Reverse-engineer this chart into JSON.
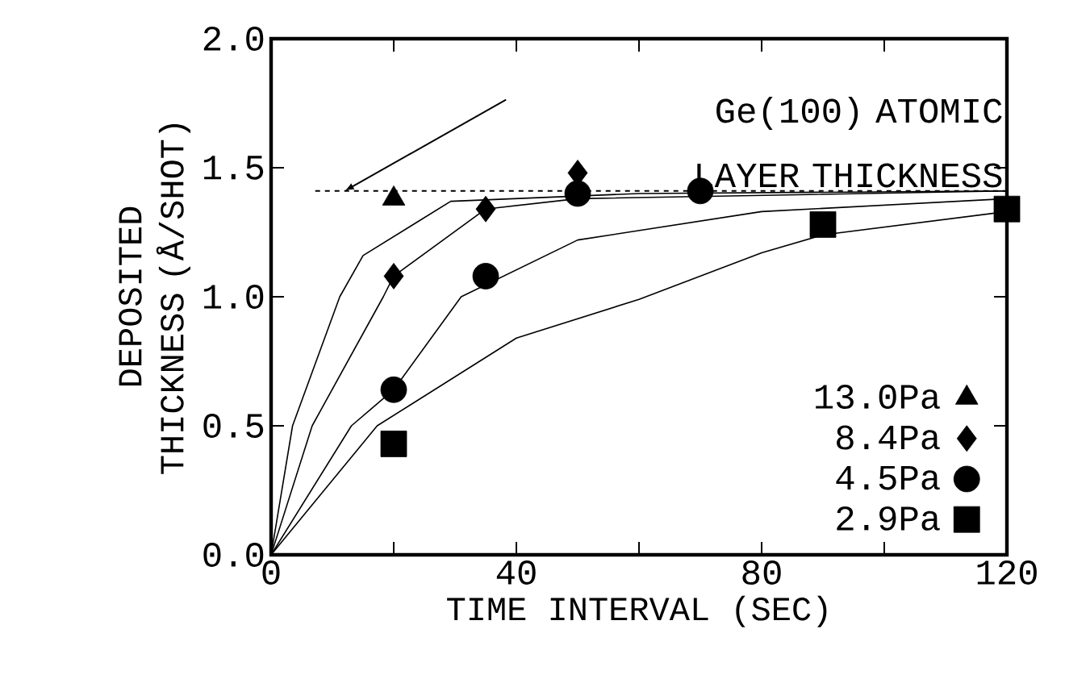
{
  "chart_data": {
    "type": "scatter",
    "xlabel": "TIME INTERVAL (SEC)",
    "ylabel": "DEPOSITED THICKNESS (Å/SHOT)",
    "xlim": [
      0,
      120
    ],
    "ylim": [
      0,
      2.0
    ],
    "xticks": [
      0,
      {
        "value": 20,
        "label": null
      },
      40,
      {
        "value": 60,
        "label": null
      },
      80,
      {
        "value": 100,
        "label": null
      },
      120
    ],
    "yticks": [
      {
        "value": 0,
        "label": "0.0"
      },
      0.5,
      {
        "value": 1.0,
        "label": "1.0"
      },
      1.5,
      {
        "value": 2.0,
        "label": "2.0"
      }
    ],
    "grid": false,
    "legend": "bottom right",
    "ref_lines": [
      {
        "axis": "y",
        "value": 1.41,
        "label": "Ge(100) ATOMIC LAYER THICKNESS",
        "line_style": "dashed",
        "color": "#000000"
      }
    ],
    "series": [
      {
        "name": "13.0Pa",
        "color": "#000000",
        "marker": "triangle",
        "x": [
          20
        ],
        "values": [
          1.38
        ]
      },
      {
        "name": "8.4Pa",
        "color": "#000000",
        "marker": "diamond",
        "x": [
          20,
          35,
          50
        ],
        "values": [
          1.08,
          1.34,
          1.48
        ]
      },
      {
        "name": "4.5Pa",
        "color": "#000000",
        "marker": "circle",
        "x": [
          20,
          35,
          50,
          70
        ],
        "values": [
          0.64,
          1.08,
          1.4,
          1.41
        ]
      },
      {
        "name": "2.9Pa",
        "color": "#000000",
        "marker": "square",
        "x": [
          20,
          90,
          120
        ],
        "values": [
          0.43,
          1.28,
          1.34
        ]
      },
      {
        "type": "line",
        "color": "#000000",
        "marker": "none",
        "line_style": "solid",
        "x": [
          0,
          3.5,
          11.2,
          15,
          29.3,
          60,
          120
        ],
        "values": [
          0,
          0.5,
          1.0,
          1.16,
          1.37,
          1.4,
          1.41
        ]
      },
      {
        "type": "line",
        "color": "#000000",
        "marker": "none",
        "line_style": "solid",
        "x": [
          0,
          6.7,
          18.3,
          20,
          35,
          50,
          120
        ],
        "values": [
          0,
          0.5,
          1.0,
          1.08,
          1.34,
          1.38,
          1.41
        ]
      },
      {
        "type": "line",
        "color": "#000000",
        "marker": "none",
        "line_style": "solid",
        "x": [
          0,
          13.1,
          20,
          31,
          50,
          80,
          120
        ],
        "values": [
          0,
          0.5,
          0.64,
          1.0,
          1.22,
          1.33,
          1.38
        ]
      },
      {
        "type": "line",
        "color": "#000000",
        "marker": "none",
        "line_style": "solid",
        "x": [
          0,
          17.3,
          40,
          60,
          80,
          90,
          120
        ],
        "values": [
          0,
          0.5,
          0.84,
          0.99,
          1.17,
          1.24,
          1.33
        ]
      }
    ]
  }
}
